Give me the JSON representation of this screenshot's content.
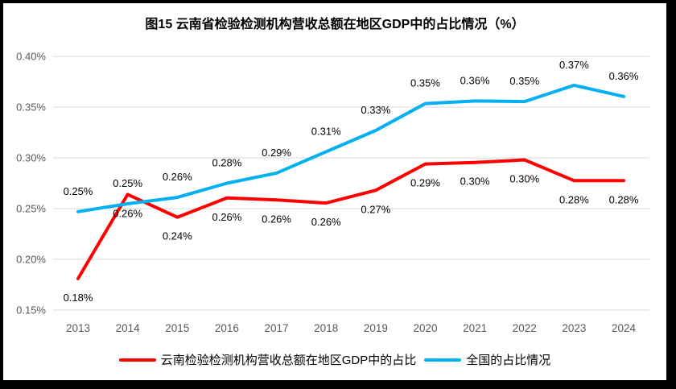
{
  "title": "图15 云南省检验检测机构营收总额在地区GDP中的占比情况（%）",
  "colors": {
    "yunnan_line": "#FF0000",
    "national_line": "#00B0F0",
    "gridline": "#D9D9D9",
    "axis_text": "#595959",
    "data_label_text": "#000000",
    "frame_border": "#000000",
    "background": "#FFFFFF"
  },
  "chart_data": {
    "type": "line",
    "title": "图15 云南省检验检测机构营收总额在地区GDP中的占比情况（%）",
    "categories": [
      "2013",
      "2014",
      "2015",
      "2016",
      "2017",
      "2018",
      "2019",
      "2020",
      "2021",
      "2022",
      "2023",
      "2024"
    ],
    "y_ticks": [
      "0.15%",
      "0.20%",
      "0.25%",
      "0.30%",
      "0.35%",
      "0.40%"
    ],
    "ylim": [
      0.15,
      0.4
    ],
    "grid": "horizontal",
    "legend_position": "bottom",
    "series": [
      {
        "key": "yunnan",
        "name": "云南检验检测机构营收总额在地区GDP中的占比",
        "color": "#FF0000",
        "label_position": "below",
        "labels": [
          "0.18%",
          "0.26%",
          "0.24%",
          "0.26%",
          "0.26%",
          "0.26%",
          "0.27%",
          "0.29%",
          "0.30%",
          "0.30%",
          "0.28%",
          "0.28%"
        ],
        "values": [
          0.18,
          0.26,
          0.24,
          0.26,
          0.26,
          0.26,
          0.27,
          0.29,
          0.3,
          0.3,
          0.28,
          0.28
        ],
        "values_precise": [
          0.181,
          0.264,
          0.2415,
          0.2605,
          0.2585,
          0.2555,
          0.268,
          0.294,
          0.2955,
          0.298,
          0.2775,
          0.2775
        ]
      },
      {
        "key": "national",
        "name": "全国的占比情况",
        "color": "#00B0F0",
        "label_position": "above",
        "labels": [
          "0.25%",
          "0.25%",
          "0.26%",
          "0.28%",
          "0.29%",
          "0.31%",
          "0.33%",
          "0.35%",
          "0.36%",
          "0.35%",
          "0.37%",
          "0.36%"
        ],
        "values": [
          0.25,
          0.25,
          0.26,
          0.28,
          0.29,
          0.31,
          0.33,
          0.35,
          0.36,
          0.35,
          0.37,
          0.36
        ],
        "values_precise": [
          0.247,
          0.2548,
          0.261,
          0.275,
          0.285,
          0.306,
          0.327,
          0.3535,
          0.356,
          0.3555,
          0.3715,
          0.3605
        ]
      }
    ]
  }
}
